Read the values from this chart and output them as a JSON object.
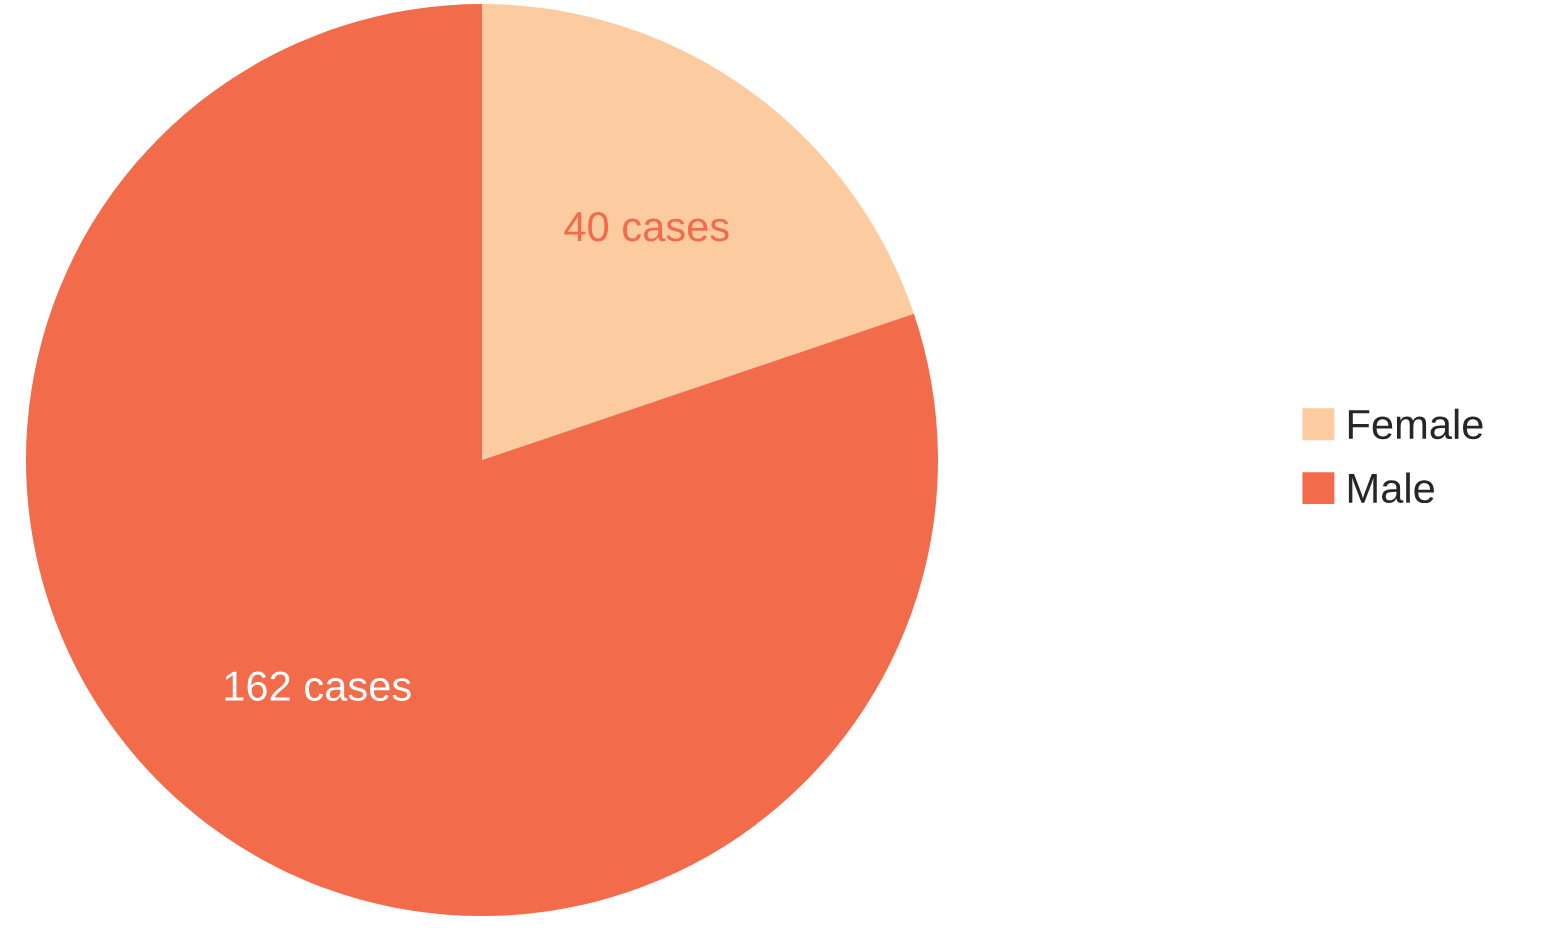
{
  "chart_data": {
    "type": "pie",
    "categories": [
      "Female",
      "Male"
    ],
    "values": [
      40,
      162
    ],
    "colors": [
      "#fccca0",
      "#f26b4b"
    ],
    "value_labels": [
      "40 cases",
      "162 cases"
    ],
    "legend": "right"
  }
}
